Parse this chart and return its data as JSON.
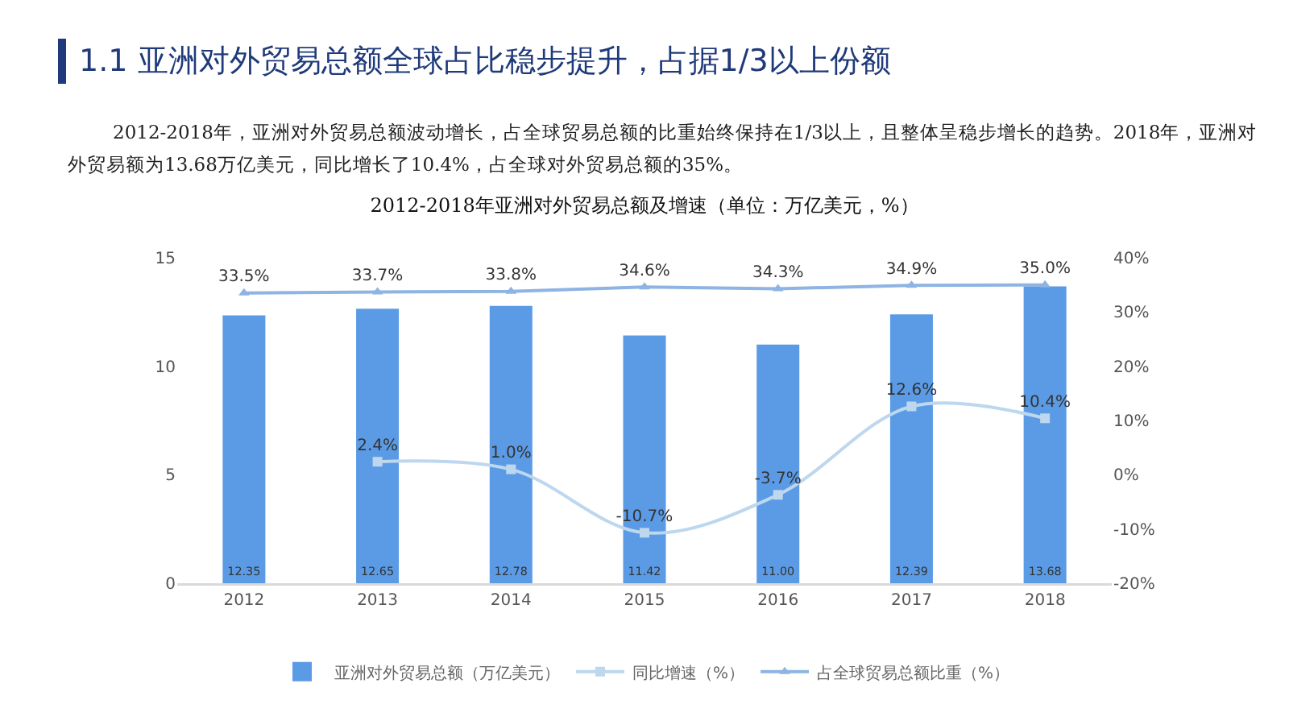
{
  "chart_data": {
    "type": "bar",
    "title": "2012-2018年亚洲对外贸易总额及增速（单位：万亿美元，%）",
    "annotations": [
      "1.1  亚洲对外贸易总额全球占比稳步提升，占据1/3以上份额",
      "2012-2018年，亚洲对外贸易总额波动增长，占全球贸易总额的比重始终保持在1/3以上，且整体呈稳步增长的趋势。2018年，亚洲对外贸易额为13.68万亿美元，同比增长了10.4%，占全球对外贸易总额的35%。"
    ],
    "categories": [
      "2012",
      "2013",
      "2014",
      "2015",
      "2016",
      "2017",
      "2018"
    ],
    "series": [
      {
        "name": "亚洲对外贸易总额（万亿美元）",
        "color": "#5b9be6",
        "values": [
          12.35,
          12.65,
          12.78,
          11.42,
          11.0,
          12.39,
          13.68
        ],
        "value_labels": [
          "12.35",
          "12.65",
          "12.78",
          "11.42",
          "11.00",
          "12.39",
          "13.68"
        ]
      },
      {
        "name": "同比增速（%）",
        "type": "line",
        "axis": "y2",
        "color": "#bdd7ee",
        "marker": "square",
        "values": [
          null,
          2.4,
          1.0,
          -10.7,
          -3.7,
          12.6,
          10.4
        ],
        "value_labels": [
          null,
          "2.4%",
          "1.0%",
          "-10.7%",
          "-3.7%",
          "12.6%",
          "10.4%"
        ]
      },
      {
        "name": "占全球贸易总额比重（%）",
        "type": "line",
        "axis": "y2",
        "color": "#8db4e2",
        "marker": "triangle",
        "values": [
          33.5,
          33.7,
          33.8,
          34.6,
          34.3,
          34.9,
          35.0
        ],
        "value_labels": [
          "33.5%",
          "33.7%",
          "33.8%",
          "34.6%",
          "34.3%",
          "34.9%",
          "35.0%"
        ]
      }
    ],
    "ylim": [
      0,
      15
    ],
    "yticks": [
      0,
      5,
      10,
      15
    ],
    "y2lim": [
      -20,
      40
    ],
    "y2ticks": [
      {
        "value": -20,
        "label": "-20%"
      },
      {
        "value": -10,
        "label": "-10%"
      },
      {
        "value": 0,
        "label": "0%"
      },
      {
        "value": 10,
        "label": "10%"
      },
      {
        "value": 20,
        "label": "20%"
      },
      {
        "value": 30,
        "label": "30%"
      },
      {
        "value": 40,
        "label": "40%"
      }
    ],
    "grid": false,
    "legend": "bottom"
  }
}
